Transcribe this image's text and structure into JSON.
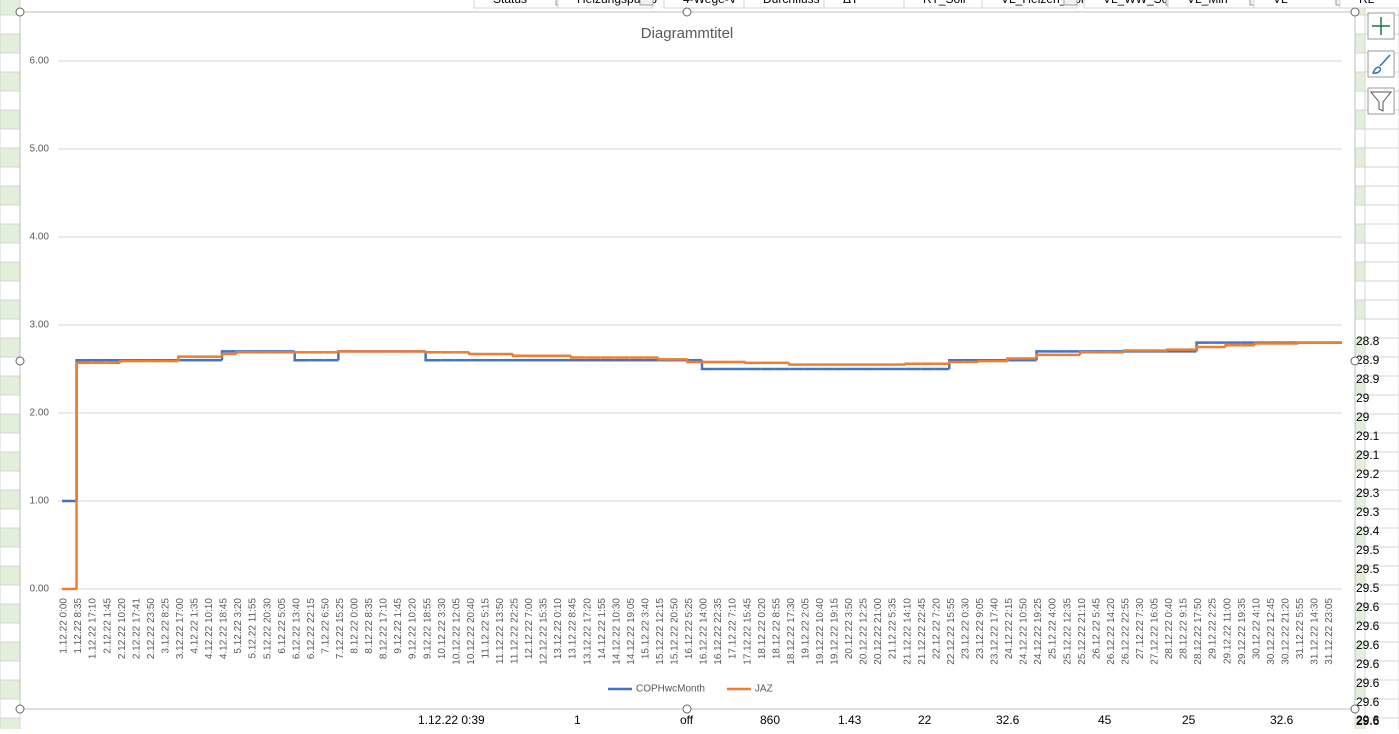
{
  "header_row": [
    "Status",
    "Heizungspump",
    "4-Wege-V",
    "Durchfluss",
    "ΔT",
    "RT_Soll",
    "VL_Heizen_Sol",
    "VL_WW_So",
    "VL_Min",
    "VL",
    "RL"
  ],
  "chart_data": {
    "type": "step",
    "title": "Diagrammtitel",
    "categories": [
      "1.12.22 0:00",
      "1.12.22 8:35",
      "1.12.22 17:10",
      "2.12.22 1:45",
      "2.12.22 10:20",
      "2.12.22 17:41",
      "2.12.22 23:50",
      "3.12.22 8:25",
      "3.12.22 17:00",
      "4.12.22 1:35",
      "4.12.22 10:10",
      "4.12.22 18:45",
      "5.12.22 3:20",
      "5.12.22 11:55",
      "5.12.22 20:30",
      "6.12.22 5:05",
      "6.12.22 13:40",
      "6.12.22 22:15",
      "7.12.22 6:50",
      "7.12.22 15:25",
      "8.12.22 0:00",
      "8.12.22 8:35",
      "8.12.22 17:10",
      "9.12.22 1:45",
      "9.12.22 10:20",
      "9.12.22 18:55",
      "10.12.22 3:30",
      "10.12.22 12:05",
      "10.12.22 20:40",
      "11.12.22 5:15",
      "11.12.22 13:50",
      "11.12.22 22:25",
      "12.12.22 7:00",
      "12.12.22 15:35",
      "13.12.22 0:10",
      "13.12.22 8:45",
      "13.12.22 17:20",
      "14.12.22 1:55",
      "14.12.22 10:30",
      "14.12.22 19:05",
      "15.12.22 3:40",
      "15.12.22 12:15",
      "15.12.22 20:50",
      "16.12.22 5:25",
      "16.12.22 14:00",
      "16.12.22 22:35",
      "17.12.22 7:10",
      "17.12.22 15:45",
      "18.12.22 0:20",
      "18.12.22 8:55",
      "18.12.22 17:30",
      "19.12.22 2:05",
      "19.12.22 10:40",
      "19.12.22 19:15",
      "20.12.22 3:50",
      "20.12.22 12:25",
      "20.12.22 21:00",
      "21.12.22 5:35",
      "21.12.22 14:10",
      "21.12.22 22:45",
      "22.12.22 7:20",
      "22.12.22 15:55",
      "23.12.22 0:30",
      "23.12.22 9:05",
      "23.12.22 17:40",
      "24.12.22 2:15",
      "24.12.22 10:50",
      "24.12.22 19:25",
      "25.12.22 4:00",
      "25.12.22 12:35",
      "25.12.22 21:10",
      "26.12.22 5:45",
      "26.12.22 14:20",
      "26.12.22 22:55",
      "27.12.22 7:30",
      "27.12.22 16:05",
      "28.12.22 0:40",
      "28.12.22 9:15",
      "28.12.22 17:50",
      "29.12.22 2:25",
      "29.12.22 11:00",
      "29.12.22 19:35",
      "30.12.22 4:10",
      "30.12.22 12:45",
      "30.12.22 21:20",
      "31.12.22 5:55",
      "31.12.22 14:30",
      "31.12.22 23:05"
    ],
    "series": [
      {
        "name": "COPHwcMonth",
        "color": "#4472c4",
        "values": [
          1.0,
          2.6,
          2.6,
          2.6,
          2.6,
          2.6,
          2.6,
          2.6,
          2.6,
          2.6,
          2.6,
          2.7,
          2.7,
          2.7,
          2.7,
          2.7,
          2.6,
          2.6,
          2.6,
          2.7,
          2.7,
          2.7,
          2.7,
          2.7,
          2.7,
          2.6,
          2.6,
          2.6,
          2.6,
          2.6,
          2.6,
          2.6,
          2.6,
          2.6,
          2.6,
          2.6,
          2.6,
          2.6,
          2.6,
          2.6,
          2.6,
          2.6,
          2.6,
          2.6,
          2.5,
          2.5,
          2.5,
          2.5,
          2.5,
          2.5,
          2.5,
          2.5,
          2.5,
          2.5,
          2.5,
          2.5,
          2.5,
          2.5,
          2.5,
          2.5,
          2.5,
          2.6,
          2.6,
          2.6,
          2.6,
          2.6,
          2.6,
          2.7,
          2.7,
          2.7,
          2.7,
          2.7,
          2.7,
          2.7,
          2.7,
          2.7,
          2.7,
          2.7,
          2.8,
          2.8,
          2.8,
          2.8,
          2.8,
          2.8,
          2.8,
          2.8,
          2.8,
          2.8
        ]
      },
      {
        "name": "JAZ",
        "color": "#ed7d31",
        "values": [
          0,
          2.57,
          2.57,
          2.57,
          2.59,
          2.59,
          2.59,
          2.59,
          2.64,
          2.64,
          2.64,
          2.67,
          2.69,
          2.69,
          2.69,
          2.69,
          2.69,
          2.69,
          2.69,
          2.7,
          2.7,
          2.7,
          2.7,
          2.7,
          2.7,
          2.69,
          2.69,
          2.69,
          2.67,
          2.67,
          2.67,
          2.65,
          2.65,
          2.65,
          2.65,
          2.63,
          2.63,
          2.63,
          2.63,
          2.63,
          2.63,
          2.61,
          2.61,
          2.58,
          2.58,
          2.58,
          2.58,
          2.57,
          2.57,
          2.57,
          2.55,
          2.55,
          2.55,
          2.55,
          2.55,
          2.55,
          2.55,
          2.55,
          2.56,
          2.56,
          2.56,
          2.58,
          2.58,
          2.59,
          2.59,
          2.62,
          2.62,
          2.66,
          2.66,
          2.66,
          2.69,
          2.69,
          2.69,
          2.71,
          2.71,
          2.71,
          2.72,
          2.72,
          2.75,
          2.75,
          2.77,
          2.77,
          2.79,
          2.79,
          2.79,
          2.8,
          2.8,
          2.8
        ]
      }
    ],
    "ylim": [
      0,
      6.3
    ],
    "yticks": [
      {
        "value": 0,
        "label": "0.00"
      },
      {
        "value": 1,
        "label": "1.00"
      },
      {
        "value": 2,
        "label": "2.00"
      },
      {
        "value": 3,
        "label": "3.00"
      },
      {
        "value": 4,
        "label": "4.00"
      },
      {
        "value": 5,
        "label": "5.00"
      },
      {
        "value": 6,
        "label": "6.00"
      }
    ],
    "grid": true,
    "legend": "bottom"
  },
  "right_column": [
    "28.8",
    "28.9",
    "28.9",
    "29",
    "29",
    "29.1",
    "29.1",
    "29.2",
    "29.3",
    "29.3",
    "29.4",
    "29.5",
    "29.5",
    "29.5",
    "29.6",
    "29.6",
    "29.6",
    "29.6",
    "29.6",
    "29.6",
    "29.6"
  ],
  "bottom_row": [
    "1.12.22 0:39",
    "1",
    "off",
    "860",
    "1.43",
    "22",
    "32.6",
    "45",
    "25",
    "32.6",
    "29.6"
  ]
}
